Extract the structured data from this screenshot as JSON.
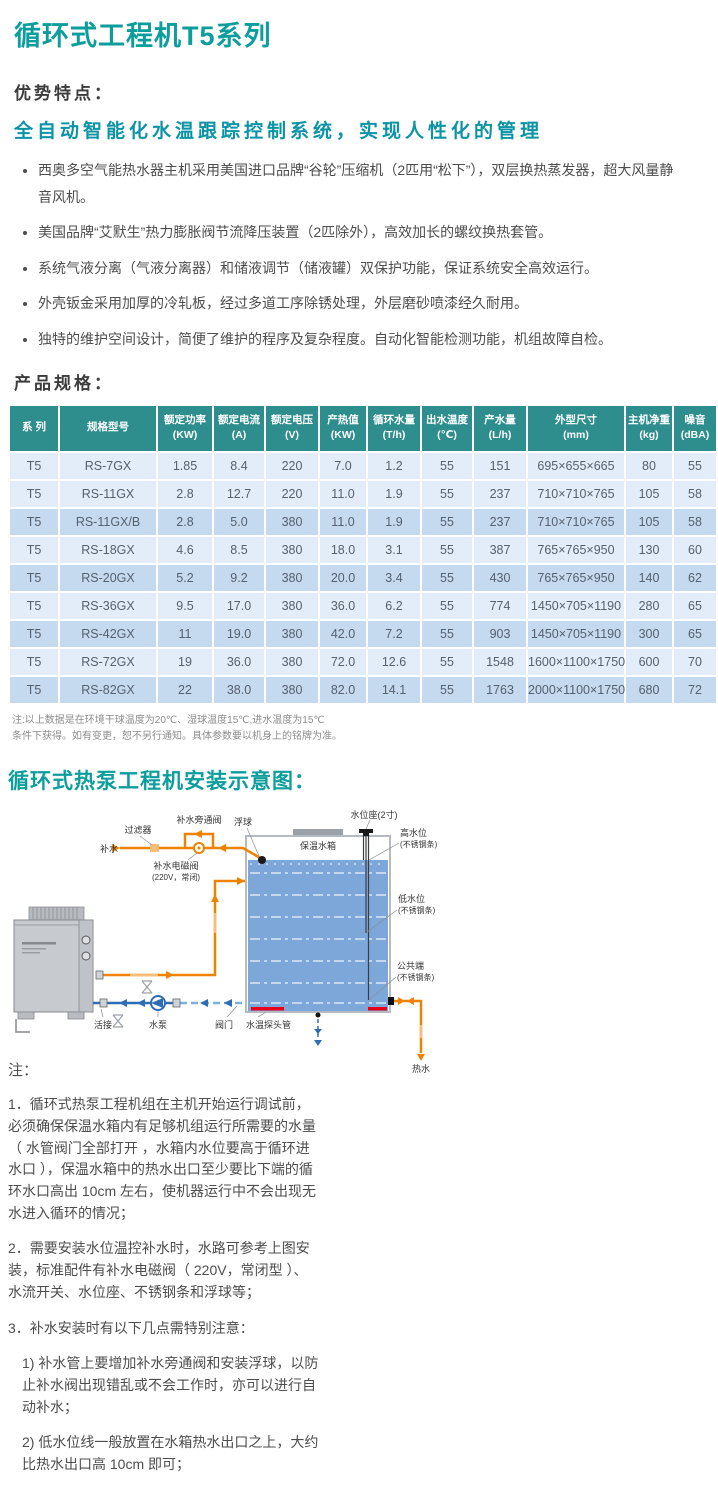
{
  "title": "循环式工程机T5系列",
  "advantages_heading": "优势特点：",
  "advantages_subtitle": "全自动智能化水温跟踪控制系统，实现人性化的管理",
  "bullets": [
    "西奥多空气能热水器主机采用美国进口品牌“谷轮”压缩机（2匹用“松下”），双层换热蒸发器，超大风量静音风机。",
    "美国品牌“艾默生”热力膨胀阀节流降压装置（2匹除外），高效加长的螺纹换热套管。",
    "系统气液分离（气液分离器）和储液调节（储液罐）双保护功能，保证系统安全高效运行。",
    "外壳钣金采用加厚的冷轧板，经过多道工序除锈处理，外层磨砂喷漆经久耐用。",
    "独特的维护空间设计，简便了维护的程序及复杂程度。自动化智能检测功能，机组故障自检。"
  ],
  "specs_heading": "产品规格：",
  "table": {
    "headers": [
      {
        "name": "系 列",
        "unit": ""
      },
      {
        "name": "规格型号",
        "unit": ""
      },
      {
        "name": "额定功率",
        "unit": "(KW)"
      },
      {
        "name": "额定电流",
        "unit": "(A)"
      },
      {
        "name": "额定电压",
        "unit": "(V)"
      },
      {
        "name": "产热值",
        "unit": "(KW)"
      },
      {
        "name": "循环水量",
        "unit": "(T/h)"
      },
      {
        "name": "出水温度",
        "unit": "(℃)"
      },
      {
        "name": "产水量",
        "unit": "(L/h)"
      },
      {
        "name": "外型尺寸",
        "unit": "(mm)"
      },
      {
        "name": "主机净重",
        "unit": "(kg)"
      },
      {
        "name": "噪音",
        "unit": "(dBA)"
      }
    ],
    "rows": [
      [
        "T5",
        "RS-7GX",
        "1.85",
        "8.4",
        "220",
        "7.0",
        "1.2",
        "55",
        "151",
        "695×655×665",
        "80",
        "55"
      ],
      [
        "T5",
        "RS-11GX",
        "2.8",
        "12.7",
        "220",
        "11.0",
        "1.9",
        "55",
        "237",
        "710×710×765",
        "105",
        "58"
      ],
      [
        "T5",
        "RS-11GX/B",
        "2.8",
        "5.0",
        "380",
        "11.0",
        "1.9",
        "55",
        "237",
        "710×710×765",
        "105",
        "58"
      ],
      [
        "T5",
        "RS-18GX",
        "4.6",
        "8.5",
        "380",
        "18.0",
        "3.1",
        "55",
        "387",
        "765×765×950",
        "130",
        "60"
      ],
      [
        "T5",
        "RS-20GX",
        "5.2",
        "9.2",
        "380",
        "20.0",
        "3.4",
        "55",
        "430",
        "765×765×950",
        "140",
        "62"
      ],
      [
        "T5",
        "RS-36GX",
        "9.5",
        "17.0",
        "380",
        "36.0",
        "6.2",
        "55",
        "774",
        "1450×705×1190",
        "280",
        "65"
      ],
      [
        "T5",
        "RS-42GX",
        "11",
        "19.0",
        "380",
        "42.0",
        "7.2",
        "55",
        "903",
        "1450×705×1190",
        "300",
        "65"
      ],
      [
        "T5",
        "RS-72GX",
        "19",
        "36.0",
        "380",
        "72.0",
        "12.6",
        "55",
        "1548",
        "1600×1100×1750",
        "600",
        "70"
      ],
      [
        "T5",
        "RS-82GX",
        "22",
        "38.0",
        "380",
        "82.0",
        "14.1",
        "55",
        "1763",
        "2000×1100×1750",
        "680",
        "72"
      ]
    ]
  },
  "table_note": {
    "line1": "注:以上数据是在环境干球温度为20℃、湿球温度15℃,进水温度为15℃",
    "line2": "条件下获得。如有变更，恕不另行通知。具体参数要以机身上的铭牌为准。"
  },
  "diagram_heading": "循环式热泵工程机安装示意图：",
  "diagram": {
    "labels": {
      "makeup_water": "补水",
      "filter": "过滤器",
      "bypass_valve": "补水旁通阀",
      "solenoid_valve": "补水电磁阀",
      "solenoid_valve_spec": "(220V，常闭)",
      "float_ball": "浮球",
      "tank": "保温水箱",
      "water_level_seat": "水位座(2寸)",
      "high_level": "高水位",
      "high_level_material": "(不锈钢条)",
      "low_level": "低水位",
      "low_level_material": "(不锈钢条)",
      "common_terminal": "公共端",
      "common_terminal_material": "(不锈钢条)",
      "union": "活接",
      "pump": "水泵",
      "valve": "阀门",
      "temp_probe": "水温探头管",
      "hot_water": "热水"
    }
  },
  "notes": {
    "heading": "注：",
    "items": [
      "1．循环式热泵工程机组在主机开始运行调试前，必须确保保温水箱内有足够机组运行所需要的水量（ 水管阀门全部打开 ，水箱内水位要高于循环进水口 ），保温水箱中的热水出口至少要比下端的循环水口高出 10cm 左右，使机器运行中不会出现无水进入循环的情况；",
      "2．需要安装水位温控补水时，水路可参考上图安装，标准配件有补水电磁阀（ 220V，常闭型 ）、水流开关、水位座、不锈钢条和浮球等；",
      "3．补水安装时有以下几点需特别注意：",
      "1) 补水管上要增加补水旁通阀和安装浮球，以防止补水阀出现错乱或不会工作时，亦可以进行自动补水；",
      "2) 低水位线一般放置在水箱热水出口之上，大约比热水出口高 10cm 即可；"
    ]
  },
  "colors": {
    "accent_teal": "#0c9d9d",
    "table_header_teal": "#2e8d8d",
    "row_light": "#e2edf9",
    "row_dark": "#c5d9ef",
    "pipe_orange": "#ef8200",
    "pipe_blue": "#2e6db4",
    "water_blue": "#7da7d9",
    "probe_red": "#e8001d"
  }
}
